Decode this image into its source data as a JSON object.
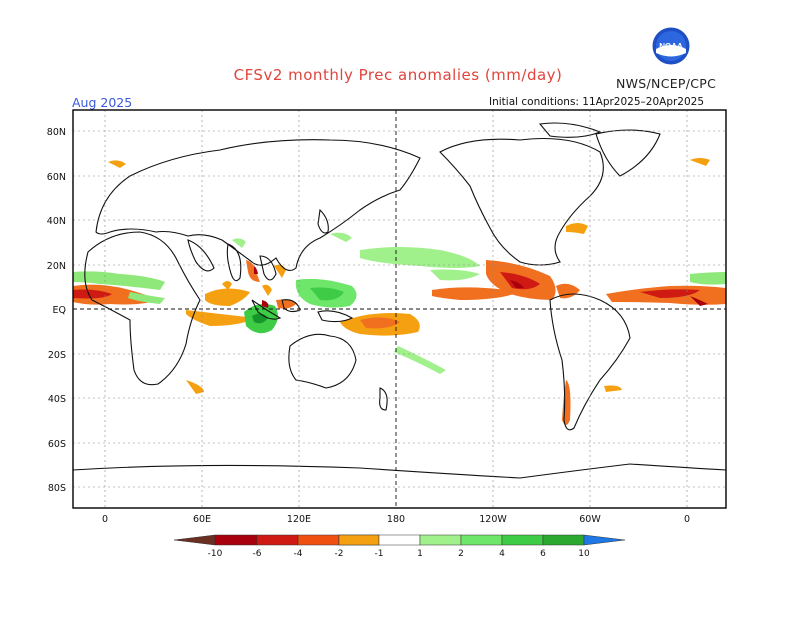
{
  "header": {
    "title": "CFSv2 monthly Prec anomalies (mm/day)",
    "agency": "NWS/NCEP/CPC",
    "logo_text": "NOAA",
    "target_month": "Aug 2025",
    "initial_conditions": "Initial conditions: 11Apr2025–20Apr2025"
  },
  "map": {
    "lat_labels": [
      "80N",
      "60N",
      "40N",
      "20N",
      "EQ",
      "20S",
      "40S",
      "60S",
      "80S"
    ],
    "lon_labels": [
      "0",
      "60E",
      "120E",
      "180",
      "120W",
      "60W",
      "0"
    ],
    "grid": true,
    "dateline_marked": true
  },
  "colorbar": {
    "ticks": [
      "-10",
      "-6",
      "-4",
      "-2",
      "-1",
      "1",
      "2",
      "4",
      "6",
      "10"
    ],
    "dry_colors": [
      "#6b2f22",
      "#a8000c",
      "#cf1a14",
      "#f04f12",
      "#f2792a",
      "#f5a010"
    ],
    "wet_colors": [
      "#a0f08c",
      "#6ee66a",
      "#3ecc46",
      "#2aa830",
      "#16962a",
      "#1e78e6"
    ],
    "neutral": "#ffffff"
  }
}
